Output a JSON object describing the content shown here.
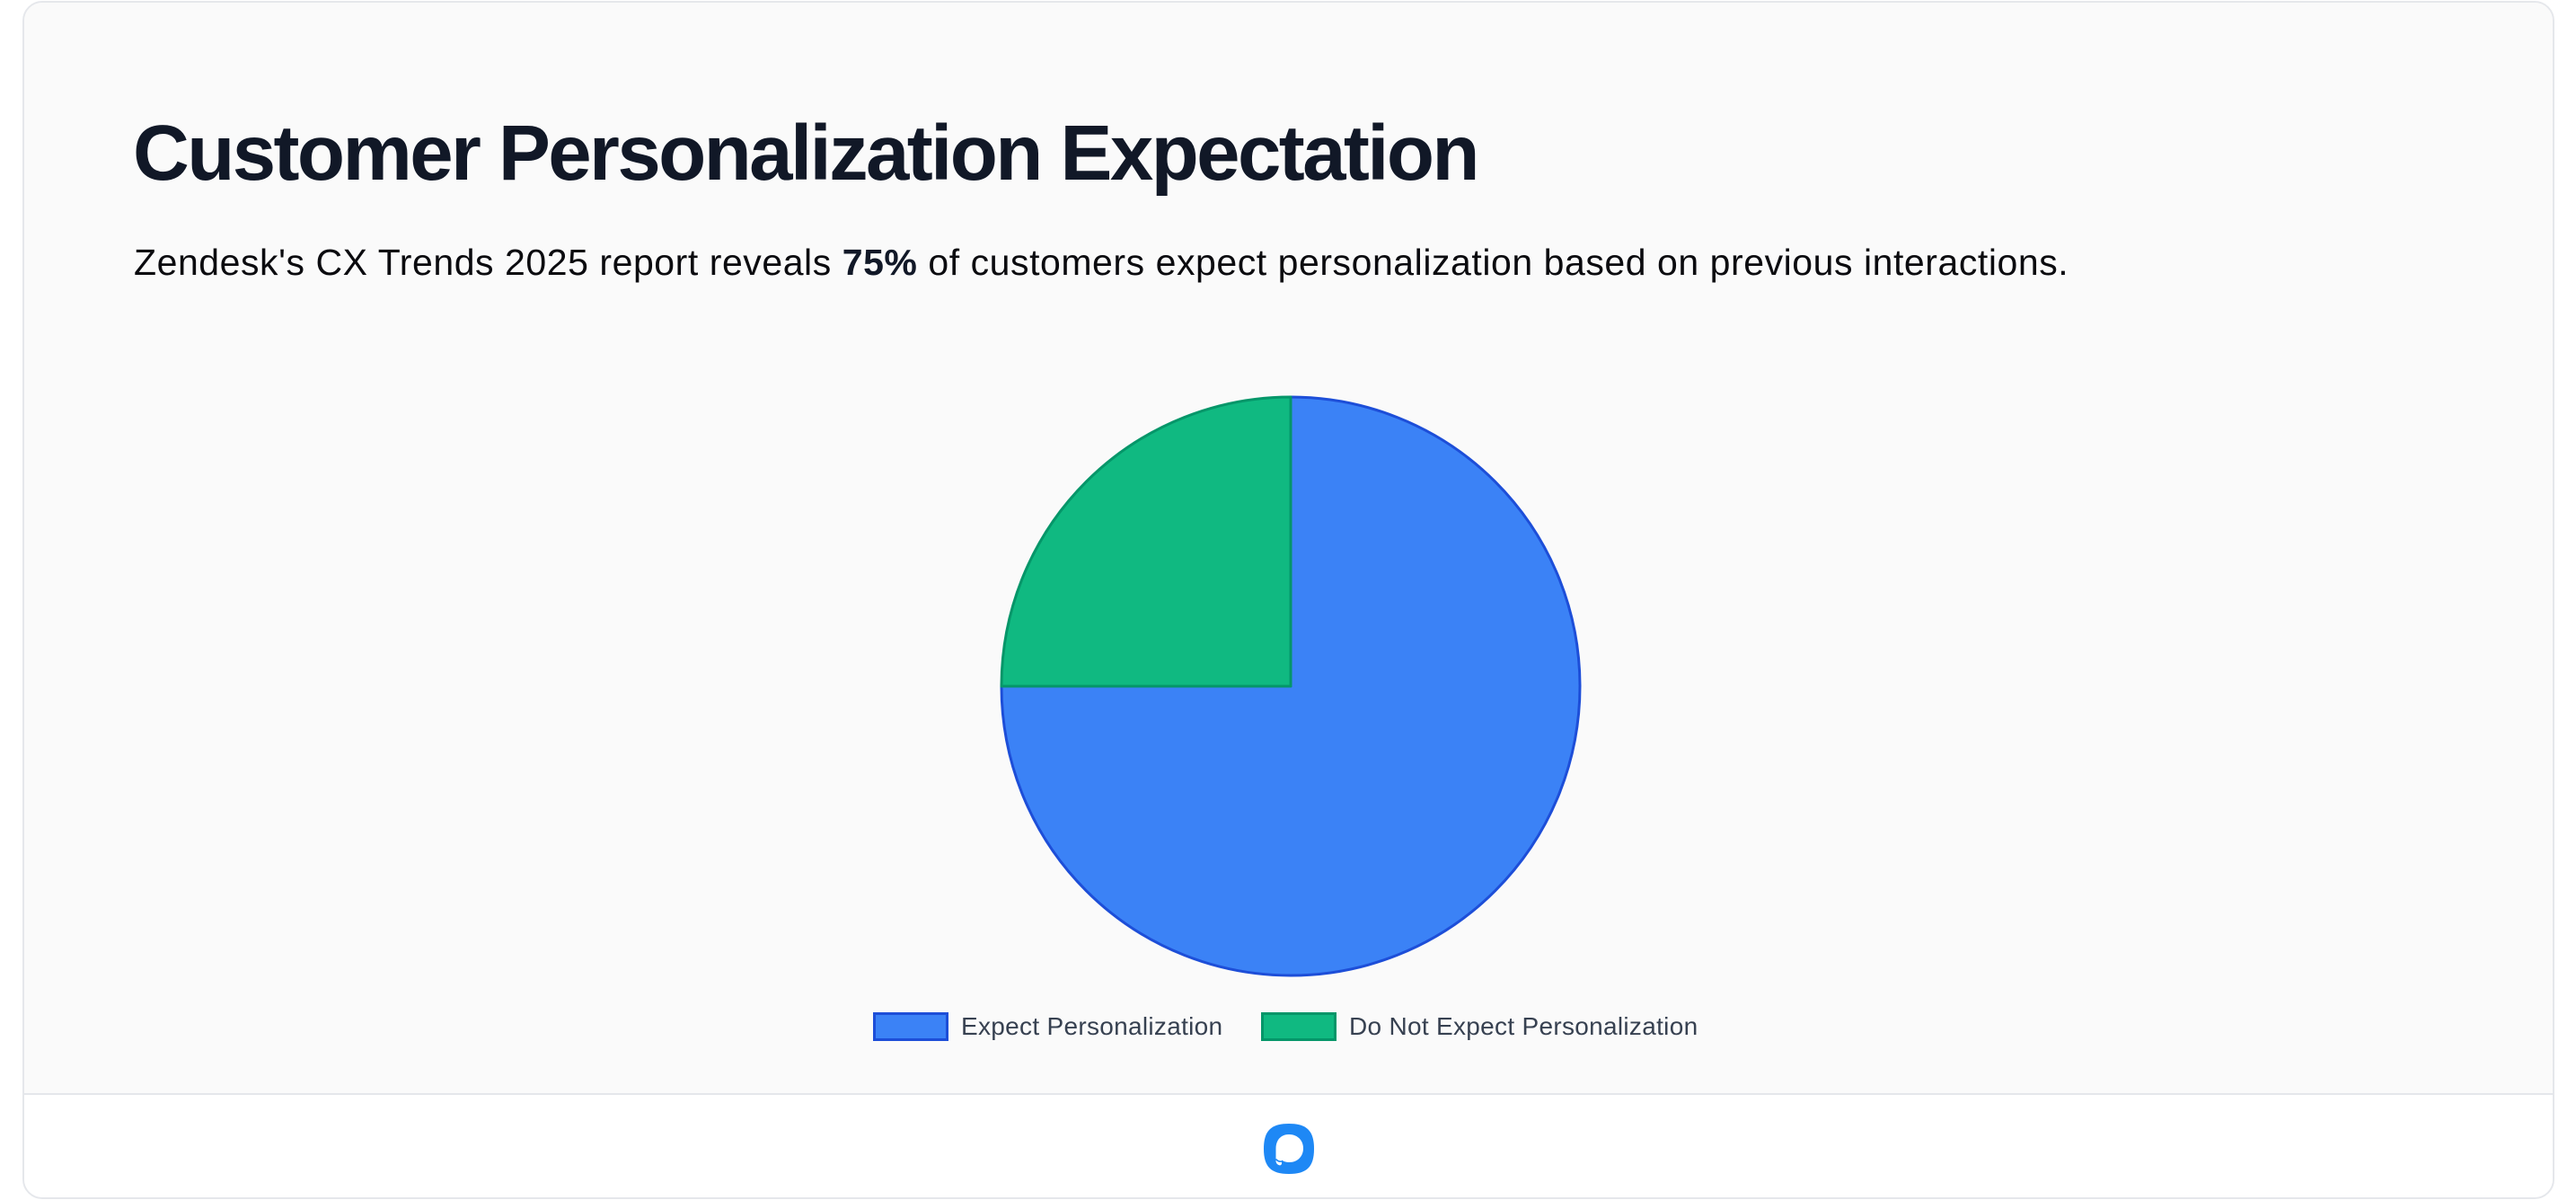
{
  "header": {
    "title": "Customer Personalization Expectation",
    "subtitle_before": "Zendesk's CX Trends 2025 report reveals ",
    "subtitle_highlight": "75%",
    "subtitle_after": " of customers expect personalization based on previous interactions."
  },
  "colors": {
    "expect_fill": "#3b82f6",
    "expect_border": "#1d4ed8",
    "not_expect_fill": "#10b981",
    "not_expect_border": "#059669",
    "title": "#111827",
    "legend_text": "#374151",
    "logo": "#1e88f5"
  },
  "legend": {
    "items": [
      {
        "label": "Expect Personalization",
        "fill": "#3b82f6",
        "border": "#1d4ed8"
      },
      {
        "label": "Do Not Expect Personalization",
        "fill": "#10b981",
        "border": "#059669"
      }
    ]
  },
  "footer": {
    "logo_icon": "chat-bubble-logo-icon"
  },
  "chart_data": {
    "type": "pie",
    "title": "Customer Personalization Expectation",
    "subtitle": "Zendesk's CX Trends 2025 report reveals 75% of customers expect personalization based on previous interactions.",
    "categories": [
      "Expect Personalization",
      "Do Not Expect Personalization"
    ],
    "values": [
      75,
      25
    ],
    "unit": "%",
    "colors": [
      "#3b82f6",
      "#10b981"
    ],
    "border_colors": [
      "#1d4ed8",
      "#059669"
    ],
    "start_angle_deg": 0,
    "direction": "clockwise",
    "legend_position": "bottom",
    "data_labels": false
  }
}
